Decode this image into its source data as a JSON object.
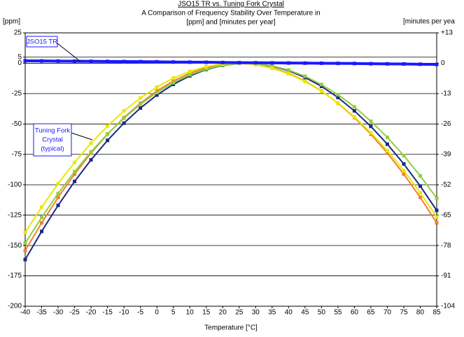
{
  "chart_data": {
    "type": "line",
    "title": "JSO15 TR vs. Tuning Fork Crystal",
    "subtitle": [
      "A Comparison of Frequency Stability Over Temperature in",
      "[ppm] and [minutes per year]"
    ],
    "ylabel": "[ppm]",
    "y2label": "[minutes per yea",
    "xlabel": "Temperature [°C]",
    "x": [
      -40,
      -35,
      -30,
      -25,
      -20,
      -15,
      -10,
      -5,
      0,
      5,
      10,
      15,
      20,
      25,
      30,
      35,
      40,
      45,
      50,
      55,
      60,
      65,
      70,
      75,
      80,
      85
    ],
    "xlim": [
      -40,
      85
    ],
    "xticks": [
      -40,
      -35,
      -30,
      -25,
      -20,
      -15,
      -10,
      -5,
      0,
      5,
      10,
      15,
      20,
      25,
      30,
      35,
      40,
      45,
      50,
      55,
      60,
      65,
      70,
      75,
      80,
      85
    ],
    "ylim": [
      -200,
      25
    ],
    "yticks": [
      -200,
      -175,
      -150,
      -125,
      -100,
      -75,
      -50,
      -25,
      0,
      5,
      25
    ],
    "y2lim": [
      -104,
      13
    ],
    "y2ticks": [
      -104,
      -91,
      -78,
      -65,
      -52,
      -39,
      -26,
      -13,
      0,
      {
        "value": 13,
        "label": "+13"
      }
    ],
    "grid": true,
    "series": [
      {
        "name": "JSO15 TR",
        "color": "#1a1aff",
        "values": [
          2.0,
          1.9,
          1.8,
          1.7,
          1.6,
          1.5,
          1.4,
          1.3,
          1.2,
          1.0,
          0.9,
          0.8,
          0.6,
          0.5,
          0.4,
          0.3,
          0.2,
          0.1,
          0,
          -0.1,
          -0.2,
          -0.4,
          -0.5,
          -0.6,
          -0.8,
          -1.0
        ]
      },
      {
        "color": "#e8e800",
        "values": [
          -139.3,
          -118.4,
          -99.1,
          -81.6,
          -65.8,
          -51.7,
          -39.3,
          -28.6,
          -19.6,
          -12.3,
          -6.7,
          -2.8,
          -0.5,
          0,
          -1.2,
          -4.1,
          -8.7,
          -15.0,
          -23.0,
          -32.7,
          -44.1,
          -57.2,
          -71.9,
          -88.4,
          -106.6,
          -126.5
        ]
      },
      {
        "color": "#8fcf3f",
        "values": [
          -148.1,
          -126.9,
          -107.2,
          -89.2,
          -72.9,
          -58.2,
          -45.2,
          -33.8,
          -24.1,
          -16.0,
          -9.5,
          -4.8,
          -1.6,
          -0.1,
          -0.3,
          -2.1,
          -5.6,
          -10.7,
          -17.5,
          -25.9,
          -35.9,
          -47.7,
          -61.0,
          -76.0,
          -92.7,
          -111.0
        ]
      },
      {
        "color": "#f08030",
        "values": [
          -154.2,
          -131.4,
          -110.4,
          -91.3,
          -73.9,
          -58.4,
          -44.7,
          -32.9,
          -22.8,
          -14.6,
          -8.2,
          -3.7,
          -0.9,
          0,
          -0.9,
          -3.7,
          -8.2,
          -14.6,
          -22.8,
          -32.9,
          -44.7,
          -58.4,
          -73.9,
          -91.3,
          -110.4,
          -131.4
        ]
      },
      {
        "color": "#1a2a80",
        "values": [
          -161.6,
          -138.4,
          -117.0,
          -97.3,
          -79.5,
          -63.5,
          -49.3,
          -36.9,
          -26.2,
          -17.4,
          -10.4,
          -5.2,
          -1.8,
          -0.1,
          -0.3,
          -2.3,
          -6.1,
          -11.7,
          -19.0,
          -28.2,
          -39.2,
          -52.0,
          -66.6,
          -82.9,
          -101.1,
          -121.1
        ]
      }
    ],
    "annotation": [
      "Tuning Fork",
      "Crystal",
      "(typical)"
    ]
  }
}
